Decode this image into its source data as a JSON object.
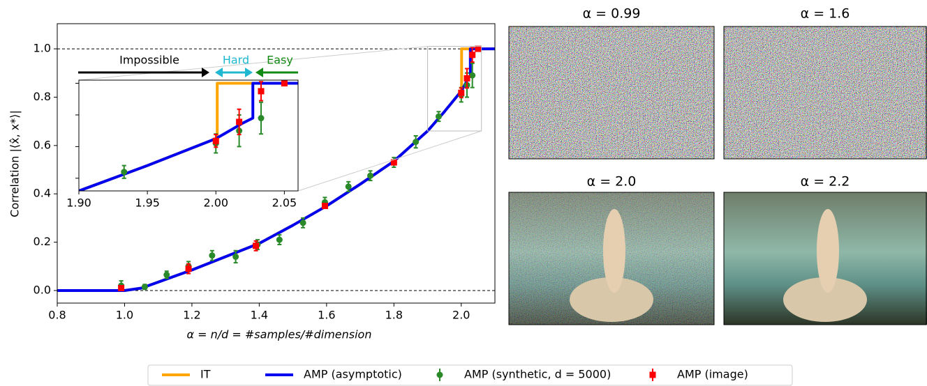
{
  "chart_data": {
    "type": "line",
    "xlabel": "α = n/d = #samples/#dimension",
    "ylabel": "Correlation |⟨x̂, x*⟩|",
    "xlim": [
      0.8,
      2.1
    ],
    "ylim": [
      -0.052,
      1.104
    ],
    "xticks": [
      0.8,
      {
        "value": 1.0,
        "label": "1.0"
      },
      1.2,
      1.4,
      1.6,
      1.8,
      {
        "value": 2.0,
        "label": "2.0"
      }
    ],
    "yticks": [
      {
        "value": 0.0,
        "label": "0.0"
      },
      0.2,
      0.4,
      0.6,
      0.8,
      {
        "value": 1.0,
        "label": "1.0"
      }
    ],
    "hlines": [
      0,
      1
    ],
    "series": [
      {
        "name": "IT",
        "color": "#ffa500",
        "kind": "line",
        "x": [
          0.8,
          1.0,
          1.05,
          1.1,
          1.2,
          1.3,
          1.4,
          1.5,
          1.6,
          1.7,
          1.8,
          1.9,
          1.95,
          2.0,
          2.001,
          2.001,
          2.1
        ],
        "values": [
          0,
          0,
          0.01,
          0.035,
          0.085,
          0.14,
          0.195,
          0.27,
          0.35,
          0.44,
          0.535,
          0.66,
          0.74,
          0.825,
          0.827,
          1.0,
          1.0
        ]
      },
      {
        "name": "AMP (asymptotic)",
        "color": "#0000ee",
        "kind": "line",
        "x": [
          0.8,
          1.0,
          1.05,
          1.1,
          1.2,
          1.3,
          1.4,
          1.5,
          1.6,
          1.7,
          1.8,
          1.9,
          1.95,
          2.0,
          2.02,
          2.027,
          2.027,
          2.1
        ],
        "values": [
          0,
          0,
          0.01,
          0.035,
          0.085,
          0.14,
          0.195,
          0.27,
          0.35,
          0.44,
          0.535,
          0.66,
          0.74,
          0.825,
          0.875,
          0.89,
          1.0,
          1.0
        ]
      },
      {
        "name": "AMP (synthetic, d = 5000)",
        "color": "#2a8a2a",
        "kind": "circle",
        "x": [
          0.99,
          1.06,
          1.125,
          1.19,
          1.26,
          1.33,
          1.395,
          1.46,
          1.53,
          1.595,
          1.665,
          1.73,
          1.8,
          1.865,
          1.933,
          2.0,
          2.017,
          2.033
        ],
        "values": [
          0.02,
          0.015,
          0.065,
          0.1,
          0.145,
          0.14,
          0.19,
          0.21,
          0.28,
          0.365,
          0.43,
          0.475,
          0.53,
          0.615,
          0.72,
          0.81,
          0.85,
          0.89
        ],
        "errors": [
          0.02,
          0.01,
          0.015,
          0.02,
          0.02,
          0.025,
          0.02,
          0.02,
          0.02,
          0.02,
          0.02,
          0.02,
          0.02,
          0.025,
          0.02,
          0.03,
          0.05,
          0.05
        ]
      },
      {
        "name": "AMP (image)",
        "color": "#ff0000",
        "kind": "square",
        "x": [
          0.99,
          1.19,
          1.39,
          1.595,
          1.8,
          2.0,
          2.017,
          2.033,
          2.05
        ],
        "values": [
          0.01,
          0.09,
          0.185,
          0.35,
          0.53,
          0.818,
          0.878,
          0.975,
          1.0
        ],
        "errors": [
          0.01,
          0.02,
          0.02,
          0.01,
          0.01,
          0.02,
          0.04,
          0.03,
          0.005
        ]
      }
    ],
    "inset": {
      "xlim": [
        1.9,
        2.06
      ],
      "ylim": [
        0.66,
        1.01
      ],
      "xticks": [
        {
          "value": 1.9,
          "label": "1.90"
        },
        1.95,
        {
          "value": 2.0,
          "label": "2.00"
        },
        2.05
      ],
      "yticks": [
        0.7,
        0.8,
        0.9,
        1.0
      ]
    },
    "annotations": [
      {
        "text": "Impossible",
        "color": "#000000"
      },
      {
        "text": "Hard",
        "color": "#1fb8d0"
      },
      {
        "text": "Easy",
        "color": "#138a13"
      }
    ]
  },
  "panels": [
    {
      "title": "α = 0.99"
    },
    {
      "title": "α = 1.6"
    },
    {
      "title": "α = 2.0"
    },
    {
      "title": "α = 2.2"
    }
  ]
}
